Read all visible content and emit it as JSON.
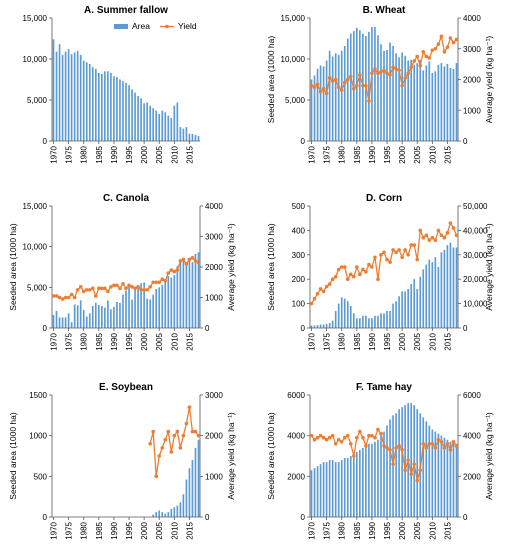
{
  "colors": {
    "area": "#5b9bd5",
    "yield": "#ed7d31",
    "axis": "#595959"
  },
  "chart_data": [
    {
      "type": "bar",
      "title": "A. Summer fallow",
      "ylabel": "",
      "y2label": "",
      "ylim": [
        0,
        15000
      ],
      "yticks": [
        0,
        5000,
        10000,
        15000
      ],
      "ytick_labels": [
        "0",
        "5,000",
        "10,000",
        "15,000"
      ],
      "xtick_labels": [
        "1970",
        "1975",
        "1980",
        "1985",
        "1990",
        "1995",
        "2000",
        "2005",
        "2010",
        "2015"
      ],
      "legend": [
        "Area",
        "Yield"
      ],
      "legend_position": "top-right",
      "x_start": 1970,
      "area": [
        12400,
        10900,
        11800,
        10500,
        10900,
        11200,
        10600,
        10800,
        11000,
        10500,
        9800,
        9600,
        9400,
        9000,
        8800,
        8300,
        8200,
        8500,
        8500,
        8300,
        7900,
        7800,
        7500,
        7300,
        7100,
        6800,
        6300,
        5900,
        5500,
        5200,
        4600,
        4700,
        4300,
        4000,
        3700,
        3300,
        3700,
        3500,
        3100,
        2800,
        4300,
        4700,
        1700,
        1500,
        1700,
        900,
        850,
        750,
        600
      ],
      "yield": []
    },
    {
      "type": "bar+line",
      "title": "B. Wheat",
      "ylabel": "Seeded area (1000 ha)",
      "y2label": "Average yield (kg ha⁻¹)",
      "ylim": [
        0,
        15000
      ],
      "yticks": [
        0,
        5000,
        10000,
        15000
      ],
      "ytick_labels": [
        "0",
        "5,000",
        "10,000",
        "15,000"
      ],
      "y2lim": [
        0,
        4000
      ],
      "y2ticks": [
        0,
        1000,
        2000,
        3000,
        4000
      ],
      "y2tick_labels": [
        "0",
        "1000",
        "2000",
        "3000",
        "4000"
      ],
      "xtick_labels": [
        "1970",
        "1975",
        "1980",
        "1985",
        "1990",
        "1995",
        "2000",
        "2005",
        "2010",
        "2015"
      ],
      "x_start": 1970,
      "area": [
        7500,
        8000,
        8800,
        9200,
        9100,
        9800,
        11000,
        10300,
        10700,
        10500,
        11000,
        11600,
        12500,
        13100,
        13400,
        13800,
        13500,
        13100,
        12800,
        13300,
        13900,
        13900,
        12900,
        11800,
        11000,
        11100,
        12000,
        11600,
        10700,
        10200,
        10800,
        10400,
        9800,
        9900,
        9300,
        9500,
        9900,
        8600,
        9200,
        9700,
        8300,
        8500,
        9300,
        9500,
        9100,
        9400,
        8900,
        8800,
        9500
      ],
      "yield": [
        1800,
        1750,
        1850,
        1600,
        1700,
        1550,
        2050,
        1950,
        2000,
        1750,
        1650,
        1900,
        2000,
        2100,
        1700,
        1800,
        2150,
        1800,
        1800,
        1300,
        2200,
        2350,
        2200,
        2250,
        2300,
        2200,
        2150,
        2400,
        2350,
        2300,
        1800,
        2050,
        2200,
        2400,
        2600,
        2750,
        2450,
        2900,
        2750,
        2700,
        2950,
        3000,
        3150,
        3400,
        2900,
        3050,
        3350,
        3200,
        3300
      ]
    },
    {
      "type": "bar+line",
      "title": "C. Canola",
      "ylabel": "Seeded area (1000 ha)",
      "y2label": "Average yield (kg ha⁻¹)",
      "ylim": [
        0,
        15000
      ],
      "yticks": [
        0,
        5000,
        10000,
        15000
      ],
      "ytick_labels": [
        "0",
        "5,000",
        "10,000",
        "15,000"
      ],
      "y2lim": [
        0,
        4000
      ],
      "y2ticks": [
        0,
        1000,
        2000,
        3000,
        4000
      ],
      "y2tick_labels": [
        "0",
        "1000",
        "2000",
        "3000",
        "4000"
      ],
      "xtick_labels": [
        "1970",
        "1975",
        "1980",
        "1985",
        "1990",
        "1995",
        "2000",
        "2005",
        "2010",
        "2015"
      ],
      "x_start": 1970,
      "area": [
        1600,
        2100,
        1300,
        1300,
        1300,
        1800,
        700,
        2900,
        2800,
        3400,
        2200,
        1400,
        1800,
        2700,
        3100,
        2800,
        2700,
        2500,
        3400,
        2300,
        2600,
        3200,
        3100,
        4100,
        4600,
        5200,
        3500,
        4900,
        5000,
        5500,
        5600,
        3600,
        3500,
        4100,
        4800,
        5000,
        5300,
        5900,
        6400,
        6200,
        6500,
        7600,
        8400,
        8300,
        8100,
        8400,
        8100,
        9100,
        9300
      ],
      "yield": [
        1050,
        1050,
        1000,
        950,
        1000,
        1000,
        1100,
        1000,
        1250,
        1350,
        1200,
        1250,
        1250,
        1300,
        1050,
        1300,
        1300,
        1300,
        1200,
        1350,
        1400,
        1400,
        1300,
        1450,
        1300,
        1400,
        1350,
        1300,
        1350,
        1250,
        1250,
        1250,
        1350,
        1500,
        1500,
        1500,
        1600,
        1550,
        1800,
        1900,
        1850,
        1900,
        2200,
        2250,
        2100,
        2250,
        2300,
        2200,
        2150
      ]
    },
    {
      "type": "bar+line",
      "title": "D. Corn",
      "ylabel": "Seeded area (1000 ha)",
      "y2label": "Average yield (kg ha⁻¹)",
      "ylim": [
        0,
        500
      ],
      "yticks": [
        0,
        100,
        200,
        300,
        400,
        500
      ],
      "ytick_labels": [
        "0",
        "100",
        "200",
        "300",
        "400",
        "500"
      ],
      "y2lim": [
        0,
        50000
      ],
      "y2ticks": [
        0,
        10000,
        20000,
        30000,
        40000,
        50000
      ],
      "y2tick_labels": [
        "0",
        "10,000",
        "20,000",
        "30,000",
        "40,000",
        "50,000"
      ],
      "xtick_labels": [
        "1970",
        "1975",
        "1980",
        "1985",
        "1990",
        "1995",
        "2000",
        "2005",
        "2010",
        "2015"
      ],
      "x_start": 1970,
      "area": [
        10,
        10,
        12,
        14,
        14,
        16,
        20,
        30,
        70,
        100,
        125,
        120,
        110,
        90,
        60,
        40,
        40,
        50,
        50,
        40,
        40,
        50,
        50,
        60,
        60,
        70,
        70,
        100,
        110,
        130,
        150,
        150,
        160,
        180,
        200,
        160,
        210,
        240,
        260,
        280,
        270,
        290,
        250,
        310,
        320,
        340,
        350,
        330,
        330
      ],
      "yield": [
        10000,
        12000,
        14000,
        16000,
        15000,
        17000,
        18000,
        20000,
        21000,
        24000,
        25000,
        25000,
        20000,
        22000,
        21000,
        25000,
        22000,
        24000,
        23000,
        26000,
        25000,
        29000,
        20000,
        30000,
        31000,
        28000,
        27000,
        32000,
        31000,
        32000,
        29000,
        32000,
        30000,
        34000,
        34000,
        28000,
        40000,
        37000,
        38000,
        36000,
        37000,
        36000,
        40000,
        38000,
        37000,
        39000,
        43000,
        41000,
        38000
      ]
    },
    {
      "type": "bar+line",
      "title": "E. Soybean",
      "ylabel": "Seeded area (1000 ha)",
      "y2label": "Average yield (kg ha⁻¹)",
      "ylim": [
        0,
        1500
      ],
      "yticks": [
        0,
        500,
        1000,
        1500
      ],
      "ytick_labels": [
        "0",
        "500",
        "1000",
        "1500"
      ],
      "y2lim": [
        0,
        3000
      ],
      "y2ticks": [
        0,
        1000,
        2000,
        3000
      ],
      "y2tick_labels": [
        "0",
        "1000",
        "2000",
        "3000"
      ],
      "xtick_labels": [
        "1970",
        "1975",
        "1980",
        "1985",
        "1990",
        "1995",
        "2000",
        "2005",
        "2010",
        "2015"
      ],
      "x_start": 1970,
      "area": [
        0,
        0,
        0,
        0,
        0,
        0,
        0,
        0,
        0,
        0,
        0,
        0,
        0,
        0,
        0,
        0,
        0,
        0,
        0,
        0,
        0,
        0,
        0,
        0,
        0,
        0,
        0,
        0,
        0,
        0,
        0,
        0,
        2,
        30,
        60,
        80,
        60,
        40,
        60,
        100,
        120,
        140,
        180,
        280,
        460,
        600,
        700,
        850,
        950
      ],
      "yield": [
        null,
        null,
        null,
        null,
        null,
        null,
        null,
        null,
        null,
        null,
        null,
        null,
        null,
        null,
        null,
        null,
        null,
        null,
        null,
        null,
        null,
        null,
        null,
        null,
        null,
        null,
        null,
        null,
        null,
        null,
        null,
        null,
        1800,
        2100,
        1000,
        1500,
        1700,
        1900,
        2100,
        1600,
        2000,
        2100,
        1700,
        2000,
        2300,
        2700,
        2100,
        2100,
        2000
      ]
    },
    {
      "type": "bar+line",
      "title": "F. Tame hay",
      "ylabel": "Seeded area (1000 ha)",
      "y2label": "Average yield (kg ha⁻¹)",
      "ylim": [
        0,
        6000
      ],
      "yticks": [
        0,
        2000,
        4000,
        6000
      ],
      "ytick_labels": [
        "0",
        "2000",
        "4000",
        "6000"
      ],
      "y2lim": [
        0,
        6000
      ],
      "y2ticks": [
        0,
        2000,
        4000,
        6000
      ],
      "y2tick_labels": [
        "0",
        "2000",
        "4000",
        "6000"
      ],
      "xtick_labels": [
        "1970",
        "1975",
        "1980",
        "1985",
        "1990",
        "1995",
        "2000",
        "2005",
        "2010",
        "2015"
      ],
      "x_start": 1970,
      "area": [
        2300,
        2400,
        2500,
        2600,
        2700,
        2700,
        2800,
        2800,
        2700,
        2700,
        2800,
        2900,
        2900,
        3000,
        3100,
        3200,
        3300,
        3400,
        3500,
        3600,
        3600,
        3700,
        3800,
        4000,
        4200,
        4500,
        4800,
        5000,
        5100,
        5300,
        5400,
        5500,
        5600,
        5600,
        5500,
        5300,
        5100,
        4900,
        4700,
        4500,
        4300,
        4200,
        4100,
        4000,
        3900,
        3800,
        3700,
        3700,
        3600
      ],
      "yield": [
        4000,
        3800,
        3900,
        4000,
        3900,
        3800,
        3900,
        4000,
        3600,
        3800,
        3700,
        3900,
        4000,
        3600,
        3000,
        3900,
        4200,
        3900,
        3500,
        4000,
        4000,
        3900,
        4300,
        4100,
        3500,
        3400,
        3300,
        2600,
        3400,
        3500,
        3300,
        2300,
        2800,
        2100,
        2600,
        1800,
        2300,
        3600,
        3400,
        3600,
        3600,
        3400,
        3800,
        3700,
        3400,
        3600,
        3300,
        3700,
        3500
      ]
    }
  ]
}
